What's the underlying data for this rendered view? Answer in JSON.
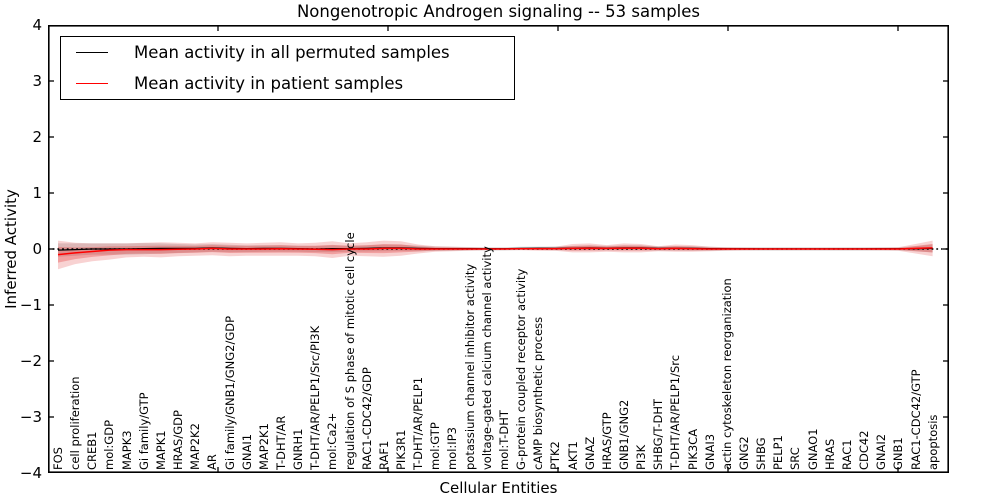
{
  "chart_data": {
    "type": "line",
    "title": "Nongenotropic Androgen signaling -- 53 samples",
    "xlabel": "Cellular Entities",
    "ylabel": "Inferred Activity",
    "ylim": [
      -4,
      4
    ],
    "yticks": [
      -4,
      -3,
      -2,
      -1,
      0,
      1,
      2,
      3,
      4
    ],
    "grid": false,
    "legend_position": "upper left",
    "zero_line": {
      "value": 0,
      "style": "dotted",
      "color": "#000000"
    },
    "inner_band_ratio": 0.55,
    "categories": [
      "FOS",
      "cell proliferation",
      "CREB1",
      "mol:GDP",
      "MAPK3",
      "Gi family/GTP",
      "MAPK1",
      "HRAS/GDP",
      "MAP2K2",
      "AR",
      "Gi family/GNB1/GNG2/GDP",
      "GNAI1",
      "MAP2K1",
      "T-DHT/AR",
      "GNRH1",
      "T-DHT/AR/PELP1/Src/PI3K",
      "mol:Ca2+",
      "regulation of S phase of mitotic cell cycle",
      "RAC1-CDC42/GDP",
      "RAF1",
      "PIK3R1",
      "T-DHT/AR/PELP1",
      "mol:GTP",
      "mol:IP3",
      "potassium channel inhibitor activity",
      "voltage-gated calcium channel activity",
      "mol:T-DHT",
      "G-protein coupled receptor activity",
      "cAMP biosynthetic process",
      "PTK2",
      "AKT1",
      "GNAZ",
      "HRAS/GTP",
      "GNB1/GNG2",
      "PI3K",
      "SHBG/T-DHT",
      "T-DHT/AR/PELP1/Src",
      "PIK3CA",
      "GNAI3",
      "actin cytoskeleton reorganization",
      "GNG2",
      "SHBG",
      "PELP1",
      "SRC",
      "GNAO1",
      "HRAS",
      "RAC1",
      "CDC42",
      "GNAI2",
      "GNB1",
      "RAC1-CDC42/GTP",
      "apoptosis"
    ],
    "series": [
      {
        "name": "Mean activity in all permuted samples",
        "color": "#000000",
        "band_color": "#b0b0b0",
        "values": [
          -0.02,
          -0.01,
          0,
          0,
          0,
          0.005,
          0.01,
          0.01,
          0.01,
          0.02,
          0.01,
          0.005,
          0.01,
          0.01,
          0.005,
          0,
          0.005,
          0.005,
          0.01,
          0.02,
          0.02,
          0.01,
          0.005,
          0.005,
          0.005,
          0.003,
          0.003,
          0.01,
          0.012,
          0.01,
          0.015,
          0.02,
          0.015,
          0.02,
          0.02,
          0.01,
          0.012,
          0.01,
          0.005,
          0.003,
          0.003,
          0.002,
          0.002,
          0.002,
          0.002,
          0.002,
          0.002,
          0.002,
          0.003,
          0.003,
          0.005,
          0.01
        ],
        "band_halfwidth": [
          0.12,
          0.11,
          0.1,
          0.1,
          0.1,
          0.1,
          0.09,
          0.08,
          0.07,
          0.07,
          0.065,
          0.06,
          0.06,
          0.06,
          0.055,
          0.055,
          0.06,
          0.055,
          0.055,
          0.06,
          0.055,
          0.05,
          0.04,
          0.035,
          0.03,
          0.03,
          0.03,
          0.03,
          0.03,
          0.035,
          0.04,
          0.045,
          0.04,
          0.045,
          0.045,
          0.04,
          0.04,
          0.04,
          0.035,
          0.03,
          0.03,
          0.03,
          0.03,
          0.03,
          0.03,
          0.03,
          0.03,
          0.03,
          0.03,
          0.03,
          0.045,
          0.07
        ]
      },
      {
        "name": "Mean activity in patient samples",
        "color": "#ff0000",
        "band_color": "#e03030",
        "values": [
          -0.1,
          -0.07,
          -0.045,
          -0.02,
          -0.01,
          -0.01,
          -0.01,
          -0.005,
          0,
          0.01,
          0,
          0,
          0,
          0.005,
          0,
          -0.005,
          -0.01,
          0,
          0,
          0.01,
          0.01,
          0,
          0,
          0,
          0,
          0,
          0,
          0.005,
          0.005,
          0.005,
          0.01,
          0.015,
          0.01,
          0.015,
          0.015,
          0.005,
          0.01,
          0.005,
          0,
          0,
          0,
          0,
          0,
          0,
          0,
          0,
          0,
          0,
          0,
          0,
          0.01,
          0.02
        ],
        "band_upper": [
          0.15,
          0.11,
          0.1,
          0.1,
          0.1,
          0.11,
          0.12,
          0.11,
          0.1,
          0.12,
          0.11,
          0.1,
          0.11,
          0.12,
          0.1,
          0.11,
          0.14,
          0.1,
          0.12,
          0.15,
          0.14,
          0.08,
          0.05,
          0.04,
          0.03,
          0.02,
          0.02,
          0.02,
          0.03,
          0.04,
          0.09,
          0.1,
          0.07,
          0.1,
          0.09,
          0.05,
          0.08,
          0.07,
          0.04,
          0.03,
          0.025,
          0.02,
          0.02,
          0.02,
          0.02,
          0.02,
          0.02,
          0.02,
          0.025,
          0.03,
          0.09,
          0.15
        ],
        "band_lower": [
          -0.36,
          -0.27,
          -0.22,
          -0.19,
          -0.15,
          -0.14,
          -0.15,
          -0.13,
          -0.12,
          -0.11,
          -0.13,
          -0.12,
          -0.12,
          -0.12,
          -0.12,
          -0.13,
          -0.16,
          -0.12,
          -0.13,
          -0.14,
          -0.12,
          -0.08,
          -0.05,
          -0.04,
          -0.03,
          -0.02,
          -0.02,
          -0.02,
          -0.03,
          -0.03,
          -0.06,
          -0.06,
          -0.05,
          -0.06,
          -0.06,
          -0.04,
          -0.05,
          -0.05,
          -0.04,
          -0.03,
          -0.025,
          -0.02,
          -0.02,
          -0.02,
          -0.02,
          -0.02,
          -0.02,
          -0.02,
          -0.025,
          -0.03,
          -0.08,
          -0.13
        ]
      }
    ]
  }
}
